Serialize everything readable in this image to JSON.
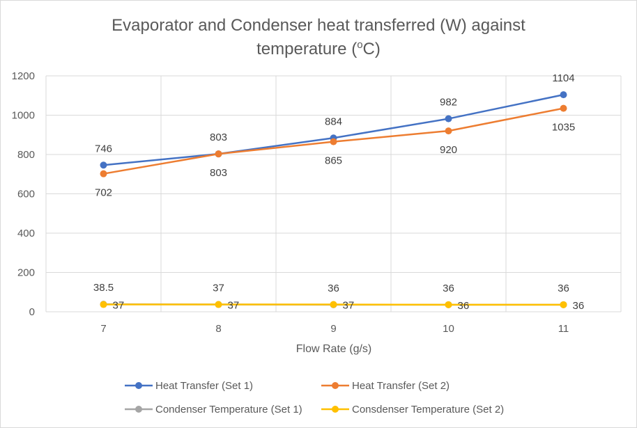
{
  "chart_data": {
    "type": "line",
    "title_line1": "Evaporator and Condenser heat transferred (W) against",
    "title_line2_prefix": "temperature (",
    "title_line2_sup": "o",
    "title_line2_suffix": "C)",
    "xlabel": "Flow Rate (g/s)",
    "ylabel": "",
    "categories": [
      "7",
      "8",
      "9",
      "10",
      "11"
    ],
    "ylim": [
      0,
      1200
    ],
    "yticks": [
      0,
      200,
      400,
      600,
      800,
      1000,
      1200
    ],
    "grid": true,
    "legend_position": "bottom",
    "series": [
      {
        "name": "Heat Transfer (Set 1)",
        "color": "#4472C4",
        "values": [
          746,
          803,
          884,
          982,
          1104
        ],
        "labels": [
          "746",
          "803",
          "884",
          "982",
          "1104"
        ],
        "label_position": "above"
      },
      {
        "name": "Heat Transfer (Set 2)",
        "color": "#ED7D31",
        "values": [
          702,
          803,
          865,
          920,
          1035
        ],
        "labels": [
          "702",
          "803",
          "865",
          "920",
          "1035"
        ],
        "label_position": "below"
      },
      {
        "name": "Condenser Temperature (Set 1)",
        "color": "#A5A5A5",
        "values": [
          38.5,
          37,
          36,
          36,
          36
        ],
        "labels": [
          "38.5",
          "37",
          "36",
          "36",
          "36"
        ],
        "label_position": "above"
      },
      {
        "name": "Consdenser Temperature (Set 2)",
        "color": "#FFC000",
        "values": [
          37,
          37,
          37,
          36,
          36
        ],
        "labels": [
          "37",
          "37",
          "37",
          "36",
          "36"
        ],
        "label_position": "right"
      }
    ]
  }
}
